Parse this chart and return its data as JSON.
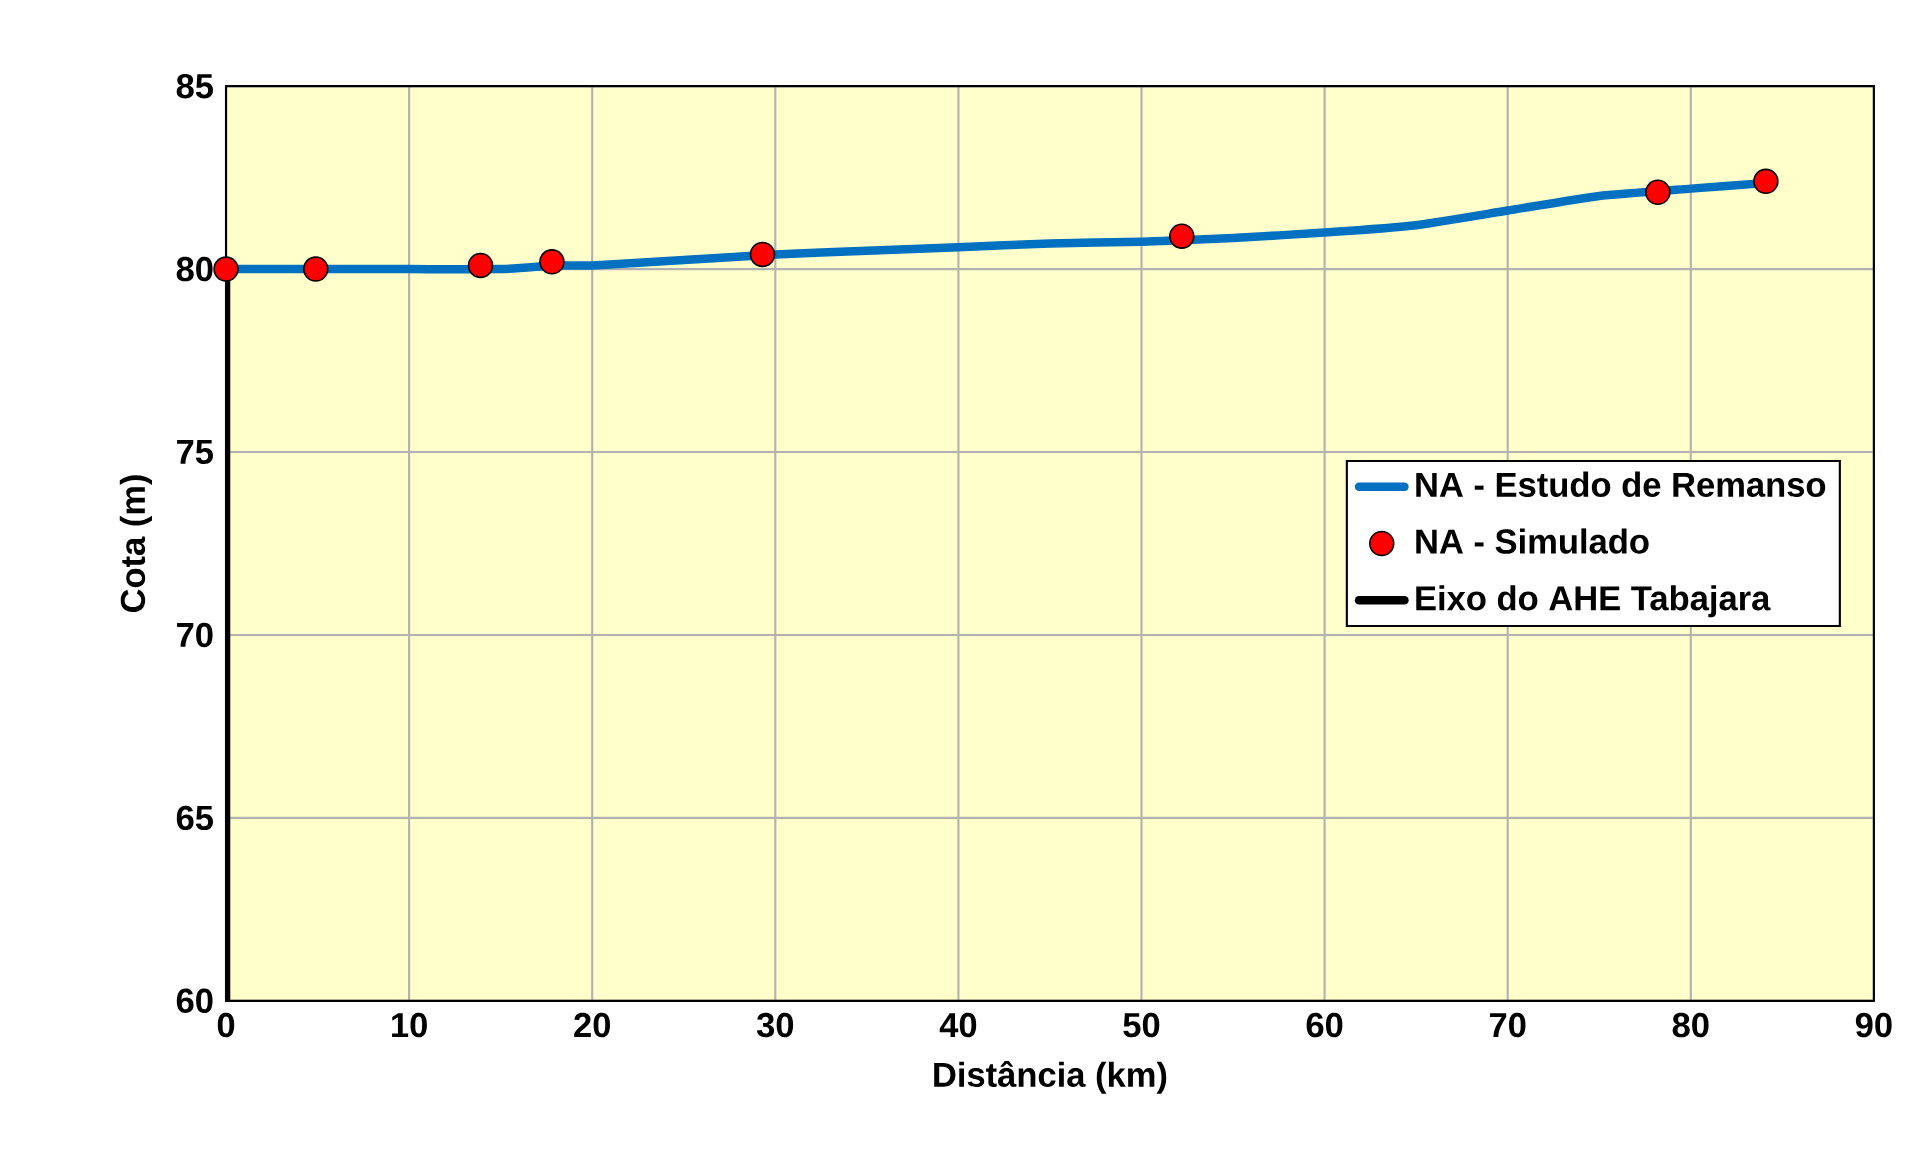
{
  "chart_data": {
    "type": "line",
    "xlabel": "Distância (km)",
    "ylabel": "Cota (m)",
    "xlim": [
      0,
      90
    ],
    "ylim": [
      60,
      85
    ],
    "xticks": [
      0,
      10,
      20,
      30,
      40,
      50,
      60,
      70,
      80,
      90
    ],
    "yticks": [
      60,
      65,
      70,
      75,
      80,
      85
    ],
    "grid": true,
    "legend": "right",
    "series": [
      {
        "name": "NA - Estudo de Remanso",
        "color": "#0070c0",
        "x": [
          0,
          5,
          10,
          15,
          18,
          20,
          25,
          30,
          35,
          40,
          45,
          50,
          55,
          60,
          65,
          70,
          75,
          80,
          84
        ],
        "values": [
          80.0,
          80.0,
          80.0,
          80.0,
          80.1,
          80.1,
          80.25,
          80.4,
          80.5,
          80.6,
          80.7,
          80.75,
          80.85,
          81.0,
          81.2,
          81.6,
          82.0,
          82.2,
          82.35
        ]
      },
      {
        "name": "NA - Simulado",
        "type": "scatter",
        "marker": "circle",
        "color": "#ff0000",
        "x": [
          0,
          4.9,
          13.9,
          17.8,
          29.3,
          52.2,
          78.2,
          84.1
        ],
        "values": [
          80.0,
          80.0,
          80.1,
          80.2,
          80.4,
          80.9,
          82.1,
          82.4
        ]
      },
      {
        "name": "Eixo do AHE Tabajara",
        "color": "#000000",
        "x": [
          0,
          0
        ],
        "values": [
          60,
          80
        ]
      }
    ]
  }
}
